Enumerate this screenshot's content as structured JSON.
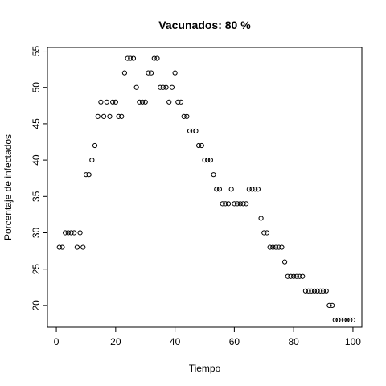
{
  "chart_data": {
    "type": "scatter",
    "title": "Vacunados:  80 %",
    "xlabel": "Tiempo",
    "ylabel": "Porcentaje de infectados",
    "xlim": [
      -3,
      103
    ],
    "ylim": [
      17,
      55.5
    ],
    "xticks": [
      0,
      20,
      40,
      60,
      80,
      100
    ],
    "yticks": [
      20,
      25,
      30,
      35,
      40,
      45,
      50,
      55
    ],
    "grid": false,
    "legend": "none",
    "marker": "open-circle",
    "series": [
      {
        "x": [
          1,
          2,
          3,
          4,
          5,
          6,
          7,
          8,
          9,
          10,
          11,
          12,
          13,
          14,
          15,
          16,
          17,
          18,
          19,
          20,
          21,
          22,
          23,
          24,
          25,
          26,
          27,
          28,
          29,
          30,
          31,
          32,
          33,
          34,
          35,
          36,
          37,
          38,
          39,
          40,
          41,
          42,
          43,
          44,
          45,
          46,
          47,
          48,
          49,
          50,
          51,
          52,
          53,
          54,
          55,
          56,
          57,
          58,
          59,
          60,
          61,
          62,
          63,
          64,
          65,
          66,
          67,
          68,
          69,
          70,
          71,
          72,
          73,
          74,
          75,
          76,
          77,
          78,
          79,
          80,
          81,
          82,
          83,
          84,
          85,
          86,
          87,
          88,
          89,
          90,
          91,
          92,
          93,
          94,
          95,
          96,
          97,
          98,
          99,
          100
        ],
        "y": [
          28,
          28,
          30,
          30,
          30,
          30,
          28,
          30,
          28,
          38,
          38,
          40,
          42,
          46,
          48,
          46,
          48,
          46,
          48,
          48,
          46,
          46,
          52,
          54,
          54,
          54,
          50,
          48,
          48,
          48,
          52,
          52,
          54,
          54,
          50,
          50,
          50,
          48,
          50,
          52,
          48,
          48,
          46,
          46,
          44,
          44,
          44,
          42,
          42,
          40,
          40,
          40,
          38,
          36,
          36,
          34,
          34,
          34,
          36,
          34,
          34,
          34,
          34,
          34,
          36,
          36,
          36,
          36,
          32,
          30,
          30,
          28,
          28,
          28,
          28,
          28,
          26,
          24,
          24,
          24,
          24,
          24,
          24,
          22,
          22,
          22,
          22,
          22,
          22,
          22,
          22,
          20,
          20,
          18,
          18,
          18,
          18,
          18,
          18,
          18
        ]
      }
    ]
  }
}
